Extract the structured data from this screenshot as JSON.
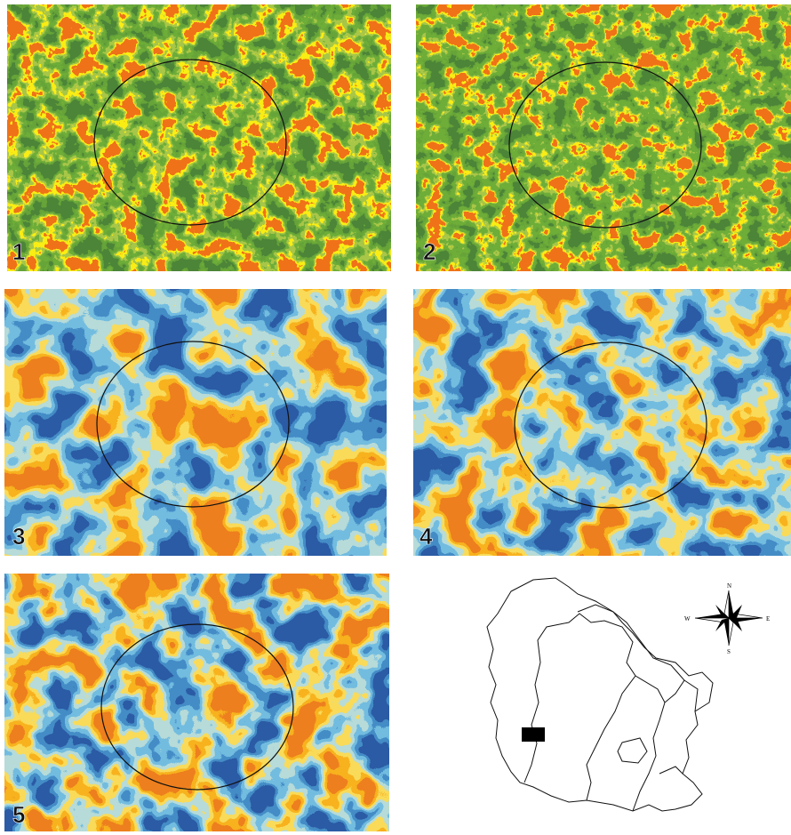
{
  "panels": [
    {
      "label": "1"
    },
    {
      "label": "2"
    },
    {
      "label": "3"
    },
    {
      "label": "4"
    },
    {
      "label": "5"
    }
  ],
  "compass": {
    "north": "N",
    "south": "S",
    "east": "E",
    "west": "W"
  }
}
